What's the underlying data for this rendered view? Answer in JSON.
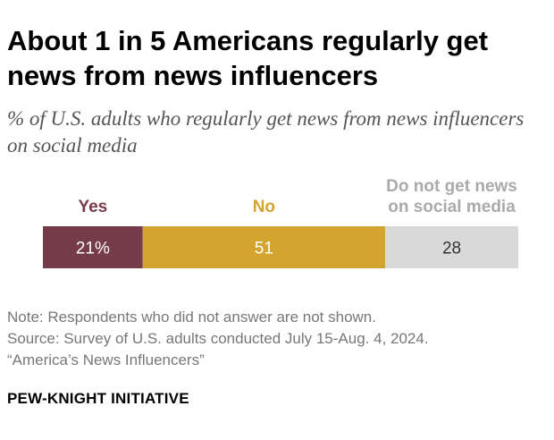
{
  "title": "About 1 in 5 Americans regularly get news from news influencers",
  "subtitle": "% of U.S. adults who regularly get news from news influencers on social media",
  "chart_data": {
    "type": "bar",
    "orientation": "horizontal-stacked",
    "categories": [
      "Yes",
      "No",
      "Do not get news on social media"
    ],
    "category_label_lines": [
      [
        "Yes"
      ],
      [
        "No"
      ],
      [
        "Do not get news",
        "on social media"
      ]
    ],
    "values": [
      21,
      51,
      28
    ],
    "value_labels": [
      "21%",
      "51",
      "28"
    ],
    "unit": "%",
    "colors": [
      "#763b48",
      "#d3a42e",
      "#d9d9d9"
    ],
    "label_colors": [
      "#763b48",
      "#d3a42e",
      "#aaaaaa"
    ],
    "value_label_colors": [
      "#ffffff",
      "#ffffff",
      "#333333"
    ],
    "xlim": [
      0,
      100
    ]
  },
  "notes": {
    "note": "Note: Respondents who did not answer are not shown.",
    "source": "Source: Survey of U.S. adults conducted July 15-Aug. 4, 2024.",
    "report": "“America’s News Influencers”"
  },
  "brand": "PEW-KNIGHT INITIATIVE"
}
